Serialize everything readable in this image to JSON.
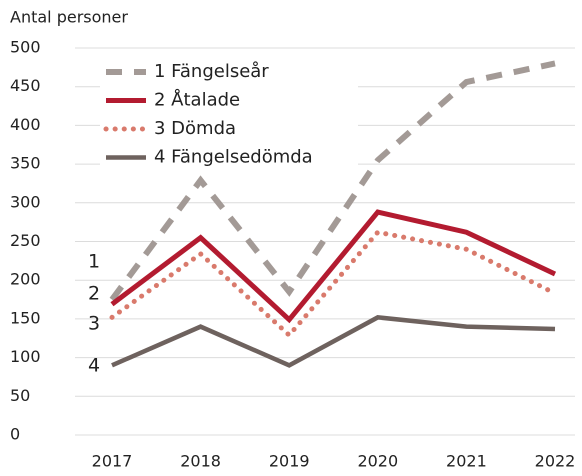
{
  "chart_data": {
    "type": "line",
    "y_axis_label": "Antal personer",
    "x": [
      "2017",
      "2018",
      "2019",
      "2020",
      "2021",
      "2022"
    ],
    "series": [
      {
        "name": "1 Fängelseår",
        "color": "#a39a96",
        "style": "dashed",
        "values": [
          175,
          329,
          185,
          355,
          456,
          480
        ]
      },
      {
        "name": "2 Åtalade",
        "color": "#b31b30",
        "style": "solid",
        "values": [
          169,
          255,
          149,
          288,
          262,
          208
        ]
      },
      {
        "name": "3 Dömda",
        "color": "#d97a6c",
        "style": "dotted",
        "values": [
          152,
          234,
          129,
          262,
          240,
          183
        ]
      },
      {
        "name": "4 Fängelsedömda",
        "color": "#6e625e",
        "style": "solid",
        "values": [
          90,
          140,
          90,
          152,
          140,
          137
        ]
      }
    ],
    "annotations": [
      "1",
      "2",
      "3",
      "4"
    ],
    "ylim": [
      0,
      500
    ],
    "yticks": [
      0,
      50,
      100,
      150,
      200,
      250,
      300,
      350,
      400,
      450,
      500
    ],
    "grid": true,
    "legend": "upper left"
  }
}
